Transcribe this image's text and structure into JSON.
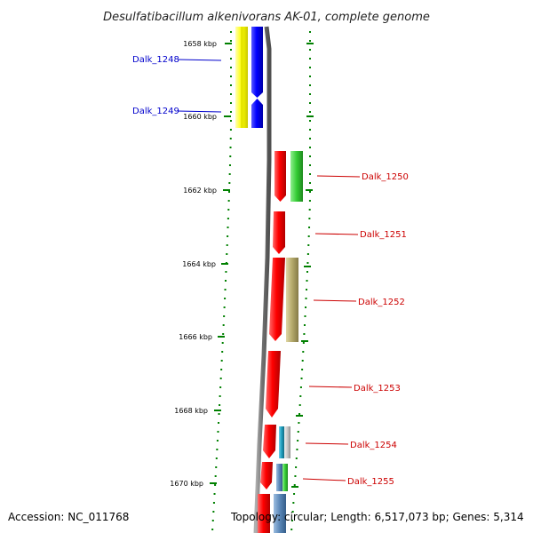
{
  "title": "Desulfatibacillum alkenivorans AK-01, complete genome",
  "ticks": [
    "1658 kbp",
    "1660 kbp",
    "1662 kbp",
    "1664 kbp",
    "1666 kbp",
    "1668 kbp",
    "1670 kbp"
  ],
  "genes_left": [
    {
      "name": "Dalk_1248",
      "color": "#0000cc"
    },
    {
      "name": "Dalk_1249",
      "color": "#0000cc"
    }
  ],
  "genes_right": [
    {
      "name": "Dalk_1250",
      "color": "#cc0000"
    },
    {
      "name": "Dalk_1251",
      "color": "#cc0000"
    },
    {
      "name": "Dalk_1252",
      "color": "#cc0000"
    },
    {
      "name": "Dalk_1253",
      "color": "#cc0000"
    },
    {
      "name": "Dalk_1254",
      "color": "#cc0000"
    },
    {
      "name": "Dalk_1255",
      "color": "#cc0000"
    }
  ],
  "footer": {
    "accession": "Accession: NC_011768",
    "topology": "Topology: circular; Length: 6,517,073 bp; Genes: 5,314"
  },
  "colors": {
    "backbone": "#808080",
    "tick": "#008000",
    "yellow": "#ffff00",
    "blue": "#0000ff",
    "red": "#ff0000",
    "green": "#33cc33",
    "khaki": "#b3a86a",
    "teal": "#1e9fbf",
    "steel": "#5a87b8"
  }
}
